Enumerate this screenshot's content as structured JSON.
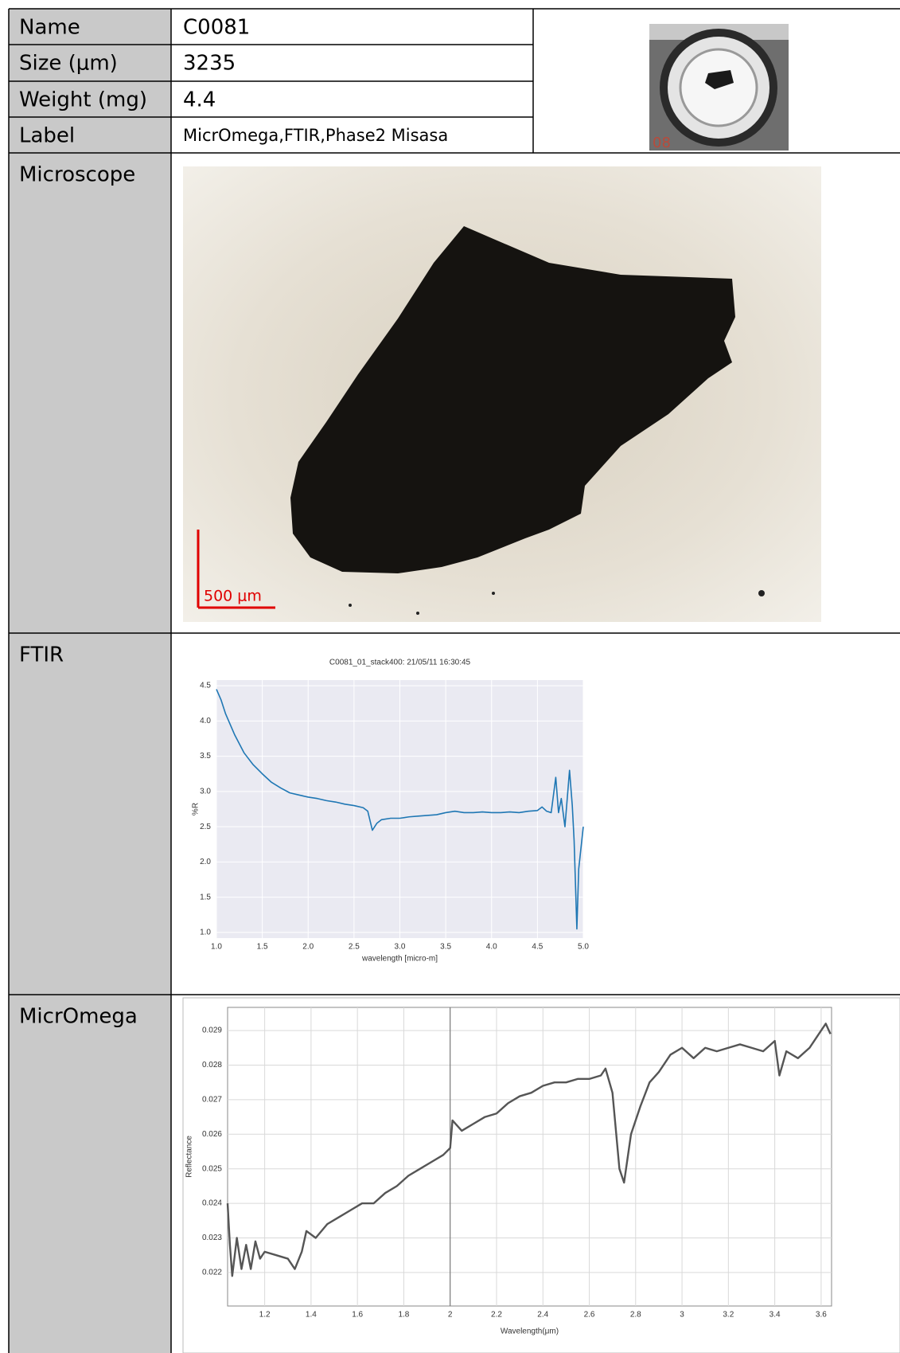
{
  "table": {
    "rows": [
      [
        "Name",
        "C0081"
      ],
      [
        "Size (μm)",
        "3235"
      ],
      [
        "Weight (mg)",
        "4.4"
      ],
      [
        "Label",
        "MicrOmega,FTIR,Phase2 Misasa"
      ],
      [
        "Microscope"
      ],
      [
        "FTIR"
      ],
      [
        "MicrOmega"
      ]
    ]
  },
  "thumbnail_label": "08",
  "scale_bar": "500 μm",
  "chart_data": [
    {
      "type": "line",
      "title": "C0081_01_stack400:  21/05/11 16:30:45",
      "x_label": "wavelength [micro-m]",
      "y_label": "%R",
      "x": [
        1.0,
        1.05,
        1.1,
        1.2,
        1.3,
        1.4,
        1.5,
        1.6,
        1.7,
        1.8,
        1.9,
        2.0,
        2.1,
        2.2,
        2.3,
        2.4,
        2.5,
        2.6,
        2.65,
        2.7,
        2.75,
        2.8,
        2.9,
        3.0,
        3.1,
        3.2,
        3.3,
        3.4,
        3.5,
        3.6,
        3.7,
        3.8,
        3.9,
        4.0,
        4.1,
        4.2,
        4.3,
        4.4,
        4.5,
        4.55,
        4.6,
        4.65,
        4.7,
        4.73,
        4.76,
        4.8,
        4.85,
        4.88,
        4.9,
        4.93,
        4.95,
        5.0
      ],
      "values": [
        4.45,
        4.3,
        4.1,
        3.8,
        3.55,
        3.38,
        3.25,
        3.13,
        3.05,
        2.98,
        2.95,
        2.92,
        2.9,
        2.87,
        2.85,
        2.82,
        2.8,
        2.77,
        2.72,
        2.45,
        2.55,
        2.6,
        2.62,
        2.62,
        2.64,
        2.65,
        2.66,
        2.67,
        2.7,
        2.72,
        2.7,
        2.7,
        2.71,
        2.7,
        2.7,
        2.71,
        2.7,
        2.72,
        2.73,
        2.78,
        2.72,
        2.7,
        3.2,
        2.7,
        2.9,
        2.5,
        3.3,
        2.8,
        2.3,
        1.05,
        1.9,
        2.5
      ],
      "color": "#1f77b4",
      "background": "#eaeaf2",
      "grid_color": "#ffffff",
      "xlim": [
        1.0,
        5.0
      ],
      "ylim": [
        0.92,
        4.58
      ],
      "xticks": [
        {
          "value": 1,
          "label": "1.0"
        },
        1.5,
        {
          "value": 2,
          "label": "2.0"
        },
        2.5,
        {
          "value": 3,
          "label": "3.0"
        },
        3.5,
        {
          "value": 4,
          "label": "4.0"
        },
        4.5,
        {
          "value": 5,
          "label": "5.0"
        }
      ],
      "yticks": [
        {
          "value": 1,
          "label": "1.0"
        },
        1.5,
        {
          "value": 2,
          "label": "2.0"
        },
        2.5,
        {
          "value": 3,
          "label": "3.0"
        },
        3.5,
        {
          "value": 4,
          "label": "4.0"
        },
        4.5
      ],
      "grid": true
    },
    {
      "type": "line",
      "x_label": "Wavelength(μm)",
      "y_label": "Reflectance",
      "x": [
        1.04,
        1.05,
        1.06,
        1.08,
        1.1,
        1.12,
        1.14,
        1.16,
        1.18,
        1.2,
        1.25,
        1.3,
        1.33,
        1.36,
        1.38,
        1.42,
        1.47,
        1.52,
        1.57,
        1.62,
        1.67,
        1.72,
        1.77,
        1.82,
        1.87,
        1.92,
        1.97,
        2.0,
        2.01,
        2.05,
        2.1,
        2.15,
        2.2,
        2.25,
        2.3,
        2.35,
        2.4,
        2.45,
        2.5,
        2.55,
        2.6,
        2.65,
        2.67,
        2.7,
        2.73,
        2.75,
        2.78,
        2.82,
        2.86,
        2.9,
        2.95,
        3.0,
        3.05,
        3.1,
        3.15,
        3.2,
        3.25,
        3.3,
        3.35,
        3.4,
        3.42,
        3.45,
        3.5,
        3.55,
        3.6,
        3.62,
        3.64
      ],
      "values": [
        0.024,
        0.0228,
        0.0219,
        0.023,
        0.0221,
        0.0228,
        0.0221,
        0.0229,
        0.0224,
        0.0226,
        0.0225,
        0.0224,
        0.0221,
        0.0226,
        0.0232,
        0.023,
        0.0234,
        0.0236,
        0.0238,
        0.024,
        0.024,
        0.0243,
        0.0245,
        0.0248,
        0.025,
        0.0252,
        0.0254,
        0.0256,
        0.0264,
        0.0261,
        0.0263,
        0.0265,
        0.0266,
        0.0269,
        0.0271,
        0.0272,
        0.0274,
        0.0275,
        0.0275,
        0.0276,
        0.0276,
        0.0277,
        0.0279,
        0.0272,
        0.025,
        0.0246,
        0.026,
        0.0268,
        0.0275,
        0.0278,
        0.0283,
        0.0285,
        0.0282,
        0.0285,
        0.0284,
        0.0285,
        0.0286,
        0.0285,
        0.0284,
        0.0287,
        0.0277,
        0.0284,
        0.0282,
        0.0285,
        0.029,
        0.0292,
        0.0289
      ],
      "color": "#555555",
      "background": "#ffffff",
      "grid_color": "#d9d9d9",
      "xlim": [
        1.04,
        3.645
      ],
      "ylim": [
        0.02103,
        0.02967
      ],
      "xticks": [
        1.2,
        1.4,
        1.6,
        1.8,
        2,
        2.2,
        2.4,
        2.6,
        2.8,
        3,
        3.2,
        3.4,
        3.6
      ],
      "yticks": [
        0.022,
        0.023,
        0.024,
        0.025,
        0.026,
        0.027,
        0.028,
        0.029
      ],
      "grid": true
    }
  ]
}
